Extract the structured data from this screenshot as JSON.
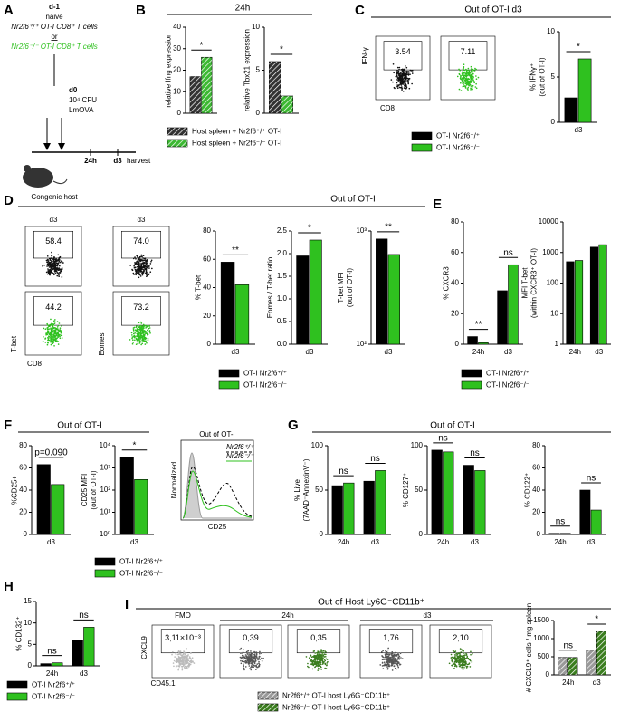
{
  "A": {
    "letter": "A",
    "day_minus1": "d-1",
    "naive": "naive",
    "wt_cells": "Nr2f6⁺/⁺ OT-I CD8⁺ T cells",
    "or": "or",
    "ko_cells": "Nr2f6⁻/⁻ OT-I CD8⁺ T cells",
    "day0": "d0",
    "dose": "10⁴ CFU",
    "pathogen": "LmOVA",
    "t1": "24h",
    "t2": "d3",
    "harvest": "harvest",
    "host": "Congenic host"
  },
  "B": {
    "letter": "B",
    "title": "24h",
    "charts": [
      {
        "ylabel": [
          "relative Ifng expression"
        ],
        "categories": [
          null
        ],
        "series": [
          {
            "color": "#333333",
            "hatch": true,
            "values": [
              17
            ]
          },
          {
            "color": "#3cb832",
            "hatch": true,
            "values": [
              26
            ]
          }
        ],
        "ylim": [
          0,
          40
        ],
        "yticks": [
          0,
          10,
          20,
          30,
          40
        ],
        "sig": [
          "*"
        ]
      },
      {
        "ylabel": [
          "relative Tbx21 expression"
        ],
        "categories": [
          null
        ],
        "series": [
          {
            "color": "#333333",
            "hatch": true,
            "values": [
              6
            ]
          },
          {
            "color": "#3cb832",
            "hatch": true,
            "values": [
              2
            ]
          }
        ],
        "ylim": [
          0,
          10
        ],
        "yticks": [
          0,
          5,
          10
        ],
        "sig": [
          "*"
        ]
      }
    ],
    "legend": [
      {
        "text": "Host spleen + Nr2f6⁺/⁺ OT-I",
        "color": "#333333",
        "hatch": true
      },
      {
        "text": "Host spleen + Nr2f6⁻/⁻ OT-I",
        "color": "#3cb832",
        "hatch": true
      }
    ]
  },
  "C": {
    "letter": "C",
    "title": "Out of OT-I d3",
    "flow": [
      {
        "number": "3.54",
        "color": "#111111"
      },
      {
        "number": "7.11",
        "color": "#2fc11f"
      }
    ],
    "flow_y": "IFN-γ",
    "flow_x": "CD8",
    "charts": [
      {
        "ylabel": [
          "% IFNγ⁺",
          "(out of OT-I)"
        ],
        "categories": [
          "d3"
        ],
        "series": [
          {
            "color": "#000000",
            "values": [
              2.7
            ]
          },
          {
            "color": "#2fc11f",
            "values": [
              7
            ]
          }
        ],
        "ylim": [
          0,
          10
        ],
        "yticks": [
          0,
          5,
          10
        ],
        "sig": [
          "*"
        ]
      }
    ],
    "legend": [
      {
        "text": "OT-I Nr2f6⁺/⁺",
        "color": "#000000"
      },
      {
        "text": "OT-I Nr2f6⁻/⁻",
        "color": "#2fc11f"
      }
    ]
  },
  "D": {
    "letter": "D",
    "title": "Out of OT-I",
    "flow": [
      {
        "header": "d3",
        "number": "58.4",
        "color": "#111111"
      },
      {
        "number": "44.2",
        "color": "#2fc11f"
      },
      {
        "header": "d3",
        "number": "74.0",
        "color": "#111111"
      },
      {
        "number": "73.2",
        "color": "#2fc11f"
      }
    ],
    "flow_y": [
      "T-bet",
      "Eomes"
    ],
    "flow_x": "CD8",
    "charts": [
      {
        "ylabel": [
          "% T-bet"
        ],
        "categories": [
          "d3"
        ],
        "series": [
          {
            "color": "#000000",
            "values": [
              58
            ]
          },
          {
            "color": "#2fc11f",
            "values": [
              42
            ]
          }
        ],
        "ylim": [
          0,
          80
        ],
        "yticks": [
          0,
          20,
          40,
          60,
          80
        ],
        "sig": [
          "**"
        ]
      },
      {
        "ylabel": [
          "Eomes / T-bet ratio"
        ],
        "categories": [
          "d3"
        ],
        "series": [
          {
            "color": "#000000",
            "values": [
              1.95
            ]
          },
          {
            "color": "#2fc11f",
            "values": [
              2.3
            ]
          }
        ],
        "ylim": [
          0,
          2.5
        ],
        "yticks": [
          {
            "value": 0,
            "label": "0.0"
          },
          0.5,
          {
            "value": 1,
            "label": "1.0"
          },
          1.5,
          {
            "value": 2,
            "label": "2.0"
          },
          2.5
        ],
        "sig": [
          "*"
        ]
      },
      {
        "ylabel": [
          "T-bet MFI",
          "(out of OT-I)"
        ],
        "categories": [
          "d3"
        ],
        "series": [
          {
            "color": "#000000",
            "values": [
              850
            ]
          },
          {
            "color": "#2fc11f",
            "values": [
              620
            ]
          }
        ],
        "log": true,
        "ylim": [
          100,
          1000
        ],
        "yticks": [
          {
            "value": 100,
            "label": "10²"
          },
          {
            "value": 1000,
            "label": "10³"
          }
        ],
        "sig": [
          "**"
        ]
      }
    ],
    "legend": [
      {
        "text": "OT-I Nr2f6⁺/⁺",
        "color": "#000000"
      },
      {
        "text": "OT-I Nr2f6⁻/⁻",
        "color": "#2fc11f"
      }
    ]
  },
  "E": {
    "letter": "E",
    "charts": [
      {
        "ylabel": [
          "% CXCR3"
        ],
        "categories": [
          "24h",
          "d3"
        ],
        "series": [
          {
            "color": "#000000",
            "values": [
              5,
              35
            ]
          },
          {
            "color": "#2fc11f",
            "values": [
              1,
              52
            ]
          }
        ],
        "ylim": [
          0,
          80
        ],
        "yticks": [
          0,
          20,
          40,
          60,
          80
        ],
        "sig": [
          "**",
          "ns"
        ]
      },
      {
        "ylabel": [
          "MFI T-bet",
          "(within CXCR3⁺ OT-I)"
        ],
        "categories": [
          "24h",
          "d3"
        ],
        "series": [
          {
            "color": "#000000",
            "values": [
              500,
              1500
            ]
          },
          {
            "color": "#2fc11f",
            "values": [
              550,
              1800
            ]
          }
        ],
        "log": true,
        "ylim": [
          1,
          10000
        ],
        "yticks": [
          1,
          10,
          100,
          1000,
          10000
        ]
      }
    ],
    "legend": [
      {
        "text": "OT-I Nr2f6⁺/⁺",
        "color": "#000000"
      },
      {
        "text": "OT-I Nr2f6⁻/⁻",
        "color": "#2fc11f"
      }
    ]
  },
  "F": {
    "letter": "F",
    "title": "Out of OT-I",
    "charts": [
      {
        "ylabel": [
          "%CD25+"
        ],
        "categories": [
          "d3"
        ],
        "series": [
          {
            "color": "#000000",
            "values": [
              63
            ]
          },
          {
            "color": "#2fc11f",
            "values": [
              45
            ]
          }
        ],
        "ylim": [
          0,
          80
        ],
        "yticks": [
          0,
          20,
          40,
          60,
          80
        ],
        "sig": [
          "p=0.090"
        ]
      },
      {
        "ylabel": [
          "CD25 MFI",
          "(out of OT-I)"
        ],
        "categories": [
          "d3"
        ],
        "series": [
          {
            "color": "#000000",
            "values": [
              3000
            ]
          },
          {
            "color": "#2fc11f",
            "values": [
              300
            ]
          }
        ],
        "log": true,
        "ylim": [
          1,
          10000
        ],
        "yticks": [
          {
            "value": 1,
            "label": "10⁰"
          },
          {
            "value": 10,
            "label": "10¹"
          },
          {
            "value": 100,
            "label": "10²"
          },
          {
            "value": 1000,
            "label": "10³"
          },
          {
            "value": 10000,
            "label": "10⁴"
          }
        ],
        "sig": [
          "*"
        ]
      }
    ],
    "hist": {
      "title": "Out of OT-I",
      "wt": "Nr2f6⁺/⁺",
      "ko": "Nr2f6⁻/⁻",
      "ylabel": "Normalized",
      "xlabel": "CD25"
    },
    "legend": [
      {
        "text": "OT-I Nr2f6⁺/⁺",
        "color": "#000000"
      },
      {
        "text": "OT-I Nr2f6⁻/⁻",
        "color": "#2fc11f"
      }
    ]
  },
  "G": {
    "letter": "G",
    "title": "Out of OT-I",
    "charts": [
      {
        "ylabel": [
          "% Live",
          "(7AAD⁻AnnexinV⁻)"
        ],
        "categories": [
          "24h",
          "d3"
        ],
        "series": [
          {
            "color": "#000000",
            "values": [
              55,
              60
            ]
          },
          {
            "color": "#2fc11f",
            "values": [
              58,
              72
            ]
          }
        ],
        "ylim": [
          0,
          100
        ],
        "yticks": [
          0,
          50,
          100
        ],
        "sig": [
          "ns",
          "ns"
        ]
      },
      {
        "ylabel": [
          "% CD127⁺"
        ],
        "categories": [
          "24h",
          "d3"
        ],
        "series": [
          {
            "color": "#000000",
            "values": [
              95,
              78
            ]
          },
          {
            "color": "#2fc11f",
            "values": [
              93,
              72
            ]
          }
        ],
        "ylim": [
          0,
          100
        ],
        "yticks": [
          0,
          50,
          100
        ],
        "sig": [
          "ns",
          "ns"
        ]
      },
      {
        "ylabel": [
          "% CD122⁺"
        ],
        "categories": [
          "24h",
          "d3"
        ],
        "series": [
          {
            "color": "#000000",
            "values": [
              1,
              40
            ]
          },
          {
            "color": "#2fc11f",
            "values": [
              1,
              22
            ]
          }
        ],
        "ylim": [
          0,
          80
        ],
        "yticks": [
          0,
          20,
          40,
          60,
          80
        ],
        "sig": [
          "ns",
          "ns"
        ]
      }
    ]
  },
  "H": {
    "letter": "H",
    "charts": [
      {
        "ylabel": [
          "% CD132⁺"
        ],
        "categories": [
          "24h",
          "d3"
        ],
        "series": [
          {
            "color": "#000000",
            "values": [
              0.5,
              6
            ]
          },
          {
            "color": "#2fc11f",
            "values": [
              0.7,
              9
            ]
          }
        ],
        "ylim": [
          0,
          15
        ],
        "yticks": [
          0,
          5,
          10,
          15
        ],
        "sig": [
          "ns",
          "ns"
        ]
      }
    ],
    "legend": [
      {
        "text": "OT-I Nr2f6⁺/⁺",
        "color": "#000000"
      },
      {
        "text": "OT-I Nr2f6⁻/⁻",
        "color": "#2fc11f"
      }
    ]
  },
  "I": {
    "letter": "I",
    "title": "Out of Host Ly6G⁻CD11b⁺",
    "headers": [
      "FMO",
      "24h",
      "d3"
    ],
    "flow": [
      {
        "number": "3,11×10⁻³",
        "color": "#bbbbbb"
      },
      {
        "number": "0,39",
        "color": "#555555"
      },
      {
        "number": "0,35",
        "color": "#3a7d1e"
      },
      {
        "number": "1,76",
        "color": "#555555"
      },
      {
        "number": "2,10",
        "color": "#3a7d1e"
      }
    ],
    "flow_y": "CXCL9",
    "flow_x": "CD45.1",
    "charts": [
      {
        "ylabel": [
          "# CXCL9⁺ cells / mg spleen"
        ],
        "categories": [
          "24h",
          "d3"
        ],
        "series": [
          {
            "color": "#999999",
            "hatch": true,
            "values": [
              480,
              680
            ]
          },
          {
            "color": "#3a7d1e",
            "hatch": true,
            "values": [
              480,
              1200
            ]
          }
        ],
        "ylim": [
          0,
          1500
        ],
        "yticks": [
          0,
          500,
          1000,
          1500
        ],
        "sig": [
          "ns",
          "*"
        ]
      }
    ],
    "legend": [
      {
        "text": "Nr2f6⁺/⁺ OT-I host Ly6G⁻CD11b⁺",
        "color": "#999999",
        "hatch": true
      },
      {
        "text": "Nr2f6⁻/⁻ OT-I host Ly6G⁻CD11b⁺",
        "color": "#3a7d1e",
        "hatch": true
      }
    ]
  }
}
